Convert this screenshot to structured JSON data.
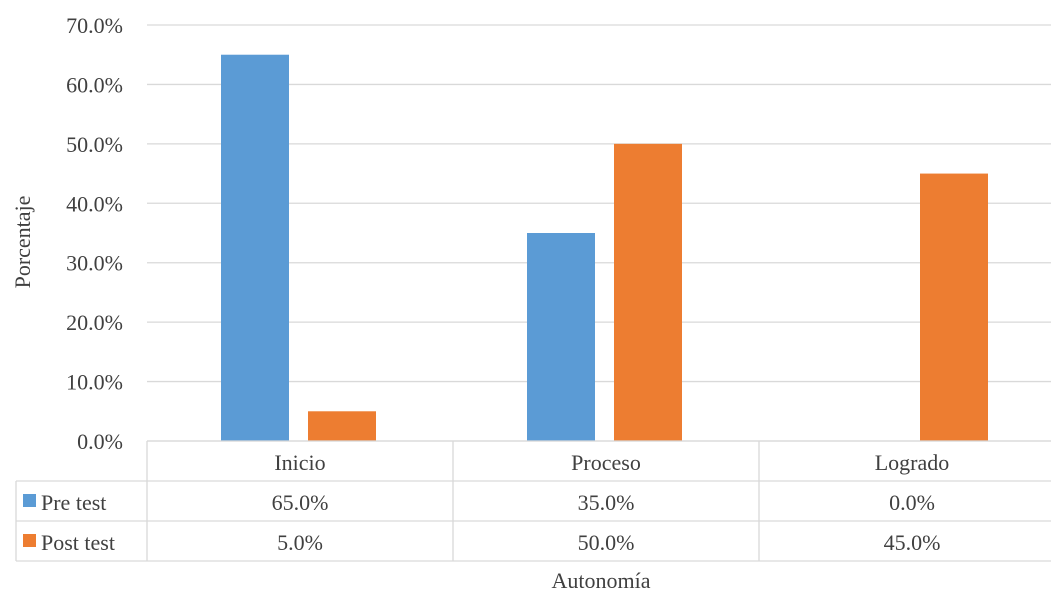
{
  "chart_data": {
    "type": "bar",
    "categories": [
      "Inicio",
      "Proceso",
      "Logrado"
    ],
    "series": [
      {
        "name": "Pre test",
        "values": [
          65.0,
          35.0,
          0.0
        ],
        "labels": [
          "65.0%",
          "35.0%",
          "0.0%"
        ],
        "color": "#5B9BD5"
      },
      {
        "name": "Post test",
        "values": [
          5.0,
          50.0,
          45.0
        ],
        "labels": [
          "5.0%",
          "50.0%",
          "45.0%"
        ],
        "color": "#ED7D31"
      }
    ],
    "ylim": [
      0,
      70
    ],
    "yticks": [
      0,
      10,
      20,
      30,
      40,
      50,
      60,
      70
    ],
    "ytick_labels": [
      "0.0%",
      "10.0%",
      "20.0%",
      "30.0%",
      "40.0%",
      "50.0%",
      "60.0%",
      "70.0%"
    ],
    "ylabel": "Porcentaje",
    "xlabel": "Autonomía",
    "grid": true,
    "legend": "data-table",
    "gridline_color": "#D9D9D9"
  }
}
